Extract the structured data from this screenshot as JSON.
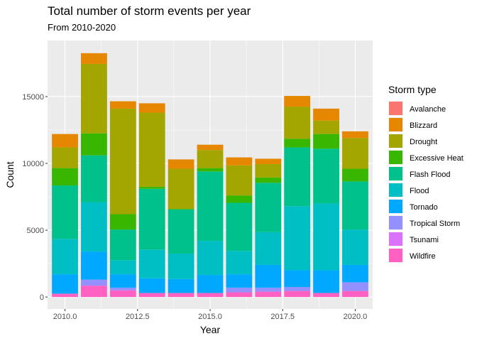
{
  "chart_data": {
    "type": "bar",
    "stacked": true,
    "title": "Total number of storm events per year",
    "subtitle": "From 2010-2020",
    "xlabel": "Year",
    "ylabel": "Count",
    "legend_title": "Storm type",
    "legend_position": "right",
    "grid": true,
    "xlim": [
      2009.4,
      2020.6
    ],
    "ylim": [
      -900,
      19200
    ],
    "x_ticks": [
      2010.0,
      2012.5,
      2015.0,
      2017.5,
      2020.0
    ],
    "x_tick_labels": [
      "2010.0",
      "2012.5",
      "2015.0",
      "2017.5",
      "2020.0"
    ],
    "y_ticks": [
      0,
      5000,
      10000,
      15000
    ],
    "y_tick_labels": [
      "0",
      "5000",
      "10000",
      "15000"
    ],
    "x": [
      2010,
      2011,
      2012,
      2013,
      2014,
      2015,
      2016,
      2017,
      2018,
      2019,
      2020
    ],
    "series": [
      {
        "name": "Wildfire",
        "color": "#FF61C3",
        "values": [
          250,
          850,
          500,
          300,
          300,
          300,
          350,
          400,
          450,
          300,
          450
        ]
      },
      {
        "name": "Tsunami",
        "color": "#DB72FB",
        "values": [
          0,
          0,
          0,
          0,
          0,
          0,
          0,
          0,
          0,
          0,
          0
        ]
      },
      {
        "name": "Tropical Storm",
        "color": "#9590FF",
        "values": [
          0,
          450,
          200,
          0,
          0,
          0,
          350,
          300,
          300,
          0,
          650
        ]
      },
      {
        "name": "Tornado",
        "color": "#00A9FF",
        "values": [
          1450,
          2100,
          1000,
          1100,
          1050,
          1350,
          1000,
          1700,
          1250,
          1700,
          1300
        ]
      },
      {
        "name": "Flood",
        "color": "#00BFC4",
        "values": [
          2650,
          3700,
          1050,
          2150,
          1900,
          2550,
          1750,
          2450,
          4800,
          5000,
          2650
        ]
      },
      {
        "name": "Flash Flood",
        "color": "#00C08B",
        "values": [
          4000,
          3500,
          2300,
          4550,
          3300,
          5200,
          3600,
          3700,
          4400,
          4100,
          3600
        ]
      },
      {
        "name": "Excessive Heat",
        "color": "#39B600",
        "values": [
          1300,
          1650,
          1150,
          150,
          50,
          250,
          550,
          400,
          650,
          1100,
          950
        ]
      },
      {
        "name": "Drought",
        "color": "#A3A500",
        "values": [
          1550,
          5200,
          7900,
          5550,
          3000,
          1350,
          2250,
          1000,
          2400,
          1000,
          2300
        ]
      },
      {
        "name": "Blizzard",
        "color": "#E58700",
        "values": [
          1000,
          800,
          550,
          700,
          700,
          400,
          600,
          400,
          800,
          900,
          500
        ]
      },
      {
        "name": "Avalanche",
        "color": "#F8766D",
        "values": [
          0,
          0,
          0,
          0,
          0,
          0,
          0,
          0,
          0,
          0,
          0
        ]
      }
    ],
    "legend_order": [
      "Avalanche",
      "Blizzard",
      "Drought",
      "Excessive Heat",
      "Flash Flood",
      "Flood",
      "Tornado",
      "Tropical Storm",
      "Tsunami",
      "Wildfire"
    ]
  }
}
